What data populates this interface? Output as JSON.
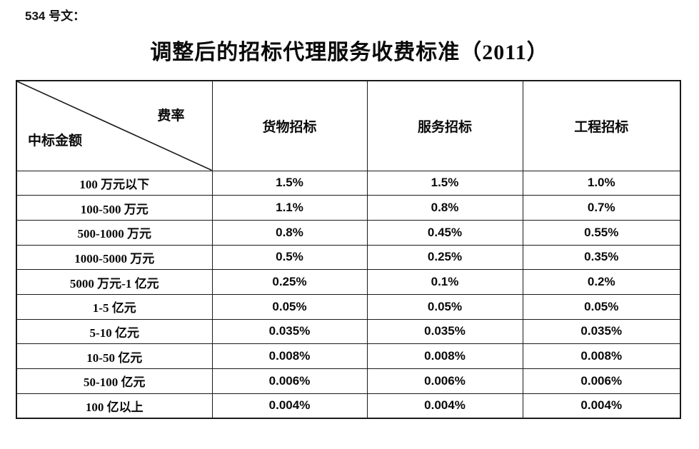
{
  "page": {
    "doc_label": "534 号文：",
    "title": "调整后的招标代理服务收费标准（2011）"
  },
  "table": {
    "corner": {
      "top_right": "费率",
      "bottom_left": "中标金额"
    },
    "columns": [
      "货物招标",
      "服务招标",
      "工程招标"
    ],
    "rows": [
      {
        "label": "100 万元以下",
        "values": [
          "1.5%",
          "1.5%",
          "1.0%"
        ]
      },
      {
        "label": "100-500 万元",
        "values": [
          "1.1%",
          "0.8%",
          "0.7%"
        ]
      },
      {
        "label": "500-1000 万元",
        "values": [
          "0.8%",
          "0.45%",
          "0.55%"
        ]
      },
      {
        "label": "1000-5000 万元",
        "values": [
          "0.5%",
          "0.25%",
          "0.35%"
        ]
      },
      {
        "label": "5000 万元-1 亿元",
        "values": [
          "0.25%",
          "0.1%",
          "0.2%"
        ]
      },
      {
        "label": "1-5 亿元",
        "values": [
          "0.05%",
          "0.05%",
          "0.05%"
        ]
      },
      {
        "label": "5-10 亿元",
        "values": [
          "0.035%",
          "0.035%",
          "0.035%"
        ]
      },
      {
        "label": "10-50 亿元",
        "values": [
          "0.008%",
          "0.008%",
          "0.008%"
        ]
      },
      {
        "label": "50-100 亿元",
        "values": [
          "0.006%",
          "0.006%",
          "0.006%"
        ]
      },
      {
        "label": "100 亿以上",
        "values": [
          "0.004%",
          "0.004%",
          "0.004%"
        ]
      }
    ]
  },
  "colors": {
    "text": "#0a0a0a",
    "border": "#1a1a1a",
    "background": "#ffffff"
  }
}
